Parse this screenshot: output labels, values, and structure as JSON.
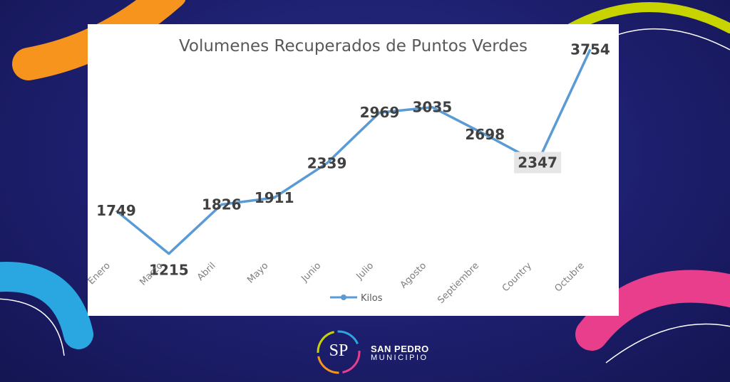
{
  "colors": {
    "line": "#5b9bd5",
    "highlight_bg": "#e6e6e6",
    "deco_orange": "#f7941d",
    "deco_green": "#c8d400",
    "deco_blue": "#2aa7e0",
    "deco_pink": "#e83e8c"
  },
  "brand": {
    "monogram": "SP",
    "name": "SAN PEDRO",
    "subtitle": "MUNICIPIO"
  },
  "chart_data": {
    "type": "line",
    "title": "Volumenes Recuperados de Puntos Verdes",
    "categories": [
      "Enero",
      "Marzo",
      "Abril",
      "Mayo",
      "Junio",
      "Julio",
      "Agosto",
      "Septiembre",
      "Country",
      "Octubre"
    ],
    "series": [
      {
        "name": "Kilos",
        "values": [
          1749,
          1215,
          1826,
          1911,
          2339,
          2969,
          3035,
          2698,
          2347,
          3754
        ]
      }
    ],
    "data_labels": [
      "1749",
      "1215",
      "1826",
      "1911",
      "2339",
      "2969",
      "3035",
      "2698",
      "2347",
      "3754"
    ],
    "highlighted_label_index": 8,
    "ylim": [
      0,
      5000
    ],
    "grid": false,
    "legend": "bottom"
  }
}
